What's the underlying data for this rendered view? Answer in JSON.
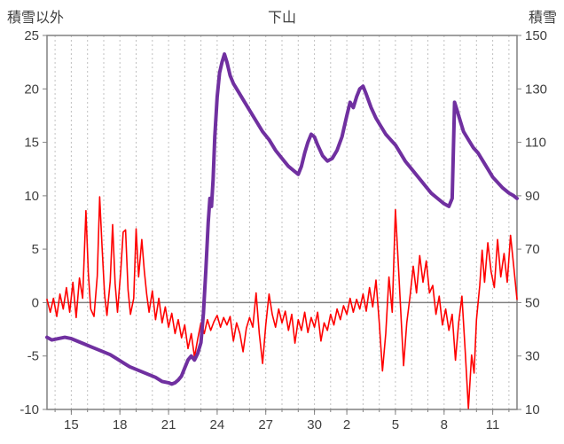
{
  "header": {
    "left_axis_title": "積雪以外",
    "chart_title": "下山",
    "right_axis_title": "積雪"
  },
  "colors": {
    "temperature_series": "#ff0000",
    "snow_series": "#7030a0",
    "axis_frame": "#808080",
    "gridline": "#c0c0c0",
    "tick_text": "#3f3f3f"
  },
  "chart_data": {
    "type": "line",
    "title": "下山",
    "legend": "none",
    "grid": "vertical-dashed-daily",
    "x_axis": {
      "min": 13.5,
      "max": 42.5,
      "tick_labels": [
        "15",
        "18",
        "21",
        "24",
        "27",
        "30",
        "2",
        "5",
        "8",
        "11"
      ],
      "tick_positions": [
        15,
        18,
        21,
        24,
        27,
        30,
        32,
        35,
        38,
        41
      ],
      "minor_step": 1
    },
    "y_left": {
      "title": "積雪以外",
      "min": -10,
      "max": 25,
      "ticks": [
        -10,
        -5,
        0,
        5,
        10,
        15,
        20,
        25
      ]
    },
    "y_right": {
      "title": "積雪",
      "min": 10,
      "max": 150,
      "ticks": [
        10,
        30,
        50,
        70,
        90,
        110,
        130,
        150
      ]
    },
    "zero_line": {
      "axis": "left",
      "value": 0
    },
    "series": [
      {
        "name": "積雪以外",
        "axis": "left",
        "color": "#ff0000",
        "width": 1.6,
        "points": [
          [
            13.5,
            0.3
          ],
          [
            13.7,
            -0.9
          ],
          [
            13.9,
            0.4
          ],
          [
            14.1,
            -1.3
          ],
          [
            14.3,
            0.8
          ],
          [
            14.5,
            -0.6
          ],
          [
            14.7,
            1.4
          ],
          [
            14.9,
            -0.9
          ],
          [
            15.1,
            1.9
          ],
          [
            15.3,
            -1.4
          ],
          [
            15.5,
            2.3
          ],
          [
            15.7,
            0.4
          ],
          [
            15.9,
            8.6
          ],
          [
            16.05,
            2.8
          ],
          [
            16.2,
            -0.6
          ],
          [
            16.4,
            -1.3
          ],
          [
            16.6,
            2.5
          ],
          [
            16.75,
            9.9
          ],
          [
            16.9,
            5.2
          ],
          [
            17.05,
            0.8
          ],
          [
            17.2,
            -1.2
          ],
          [
            17.4,
            2.0
          ],
          [
            17.55,
            7.3
          ],
          [
            17.7,
            1.8
          ],
          [
            17.85,
            -0.9
          ],
          [
            18.05,
            3.0
          ],
          [
            18.2,
            6.6
          ],
          [
            18.35,
            6.8
          ],
          [
            18.5,
            1.2
          ],
          [
            18.65,
            -1.1
          ],
          [
            18.85,
            0.4
          ],
          [
            19.0,
            6.9
          ],
          [
            19.15,
            2.4
          ],
          [
            19.35,
            5.9
          ],
          [
            19.5,
            3.0
          ],
          [
            19.65,
            0.8
          ],
          [
            19.8,
            -0.9
          ],
          [
            20.0,
            1.1
          ],
          [
            20.2,
            -1.6
          ],
          [
            20.4,
            0.4
          ],
          [
            20.6,
            -1.9
          ],
          [
            20.8,
            -0.4
          ],
          [
            21.0,
            -2.3
          ],
          [
            21.2,
            -1.0
          ],
          [
            21.4,
            -2.9
          ],
          [
            21.6,
            -1.6
          ],
          [
            21.8,
            -3.3
          ],
          [
            22.0,
            -2.1
          ],
          [
            22.2,
            -4.3
          ],
          [
            22.4,
            -2.9
          ],
          [
            22.6,
            -5.1
          ],
          [
            22.8,
            -3.4
          ],
          [
            23.0,
            -1.9
          ],
          [
            23.2,
            -2.9
          ],
          [
            23.4,
            -1.6
          ],
          [
            23.6,
            -2.6
          ],
          [
            23.8,
            -1.8
          ],
          [
            24.0,
            -1.2
          ],
          [
            24.2,
            -2.3
          ],
          [
            24.4,
            -1.4
          ],
          [
            24.6,
            -2.1
          ],
          [
            24.8,
            -1.3
          ],
          [
            25.0,
            -3.6
          ],
          [
            25.2,
            -1.9
          ],
          [
            25.4,
            -2.9
          ],
          [
            25.6,
            -4.6
          ],
          [
            25.8,
            -2.4
          ],
          [
            26.0,
            -1.4
          ],
          [
            26.2,
            -2.3
          ],
          [
            26.4,
            0.9
          ],
          [
            26.6,
            -2.9
          ],
          [
            26.8,
            -5.7
          ],
          [
            27.0,
            -2.1
          ],
          [
            27.2,
            0.8
          ],
          [
            27.4,
            -1.1
          ],
          [
            27.6,
            -2.3
          ],
          [
            27.8,
            -0.6
          ],
          [
            28.0,
            -1.9
          ],
          [
            28.2,
            -0.8
          ],
          [
            28.4,
            -2.6
          ],
          [
            28.6,
            -1.1
          ],
          [
            28.8,
            -3.8
          ],
          [
            29.0,
            -1.6
          ],
          [
            29.2,
            -2.6
          ],
          [
            29.4,
            -0.9
          ],
          [
            29.6,
            -2.8
          ],
          [
            29.8,
            -1.4
          ],
          [
            30.0,
            -2.3
          ],
          [
            30.2,
            -0.9
          ],
          [
            30.4,
            -3.6
          ],
          [
            30.6,
            -1.9
          ],
          [
            30.8,
            -2.6
          ],
          [
            31.0,
            -1.1
          ],
          [
            31.2,
            -2.1
          ],
          [
            31.4,
            -0.6
          ],
          [
            31.6,
            -1.6
          ],
          [
            31.8,
            -0.3
          ],
          [
            32.0,
            -1.1
          ],
          [
            32.2,
            0.4
          ],
          [
            32.4,
            -0.9
          ],
          [
            32.6,
            0.3
          ],
          [
            32.8,
            -0.6
          ],
          [
            33.0,
            0.8
          ],
          [
            33.2,
            -0.8
          ],
          [
            33.4,
            1.4
          ],
          [
            33.6,
            -0.4
          ],
          [
            33.8,
            2.1
          ],
          [
            34.0,
            -1.9
          ],
          [
            34.2,
            -6.4
          ],
          [
            34.4,
            -2.9
          ],
          [
            34.6,
            2.4
          ],
          [
            34.8,
            -0.9
          ],
          [
            35.0,
            8.7
          ],
          [
            35.2,
            2.9
          ],
          [
            35.5,
            -5.9
          ],
          [
            35.7,
            -1.9
          ],
          [
            35.9,
            0.6
          ],
          [
            36.1,
            3.4
          ],
          [
            36.3,
            0.9
          ],
          [
            36.5,
            4.4
          ],
          [
            36.7,
            1.9
          ],
          [
            36.9,
            3.9
          ],
          [
            37.1,
            0.9
          ],
          [
            37.3,
            1.6
          ],
          [
            37.5,
            -1.1
          ],
          [
            37.7,
            0.6
          ],
          [
            37.9,
            -2.1
          ],
          [
            38.1,
            -0.6
          ],
          [
            38.3,
            -2.6
          ],
          [
            38.5,
            -1.1
          ],
          [
            38.7,
            -5.4
          ],
          [
            38.9,
            -1.9
          ],
          [
            39.1,
            0.6
          ],
          [
            39.3,
            -4.4
          ],
          [
            39.5,
            -9.9
          ],
          [
            39.7,
            -4.9
          ],
          [
            39.85,
            -6.6
          ],
          [
            40.0,
            -1.6
          ],
          [
            40.2,
            1.6
          ],
          [
            40.35,
            4.9
          ],
          [
            40.5,
            1.9
          ],
          [
            40.7,
            5.6
          ],
          [
            40.9,
            2.9
          ],
          [
            41.1,
            1.4
          ],
          [
            41.3,
            5.9
          ],
          [
            41.5,
            2.4
          ],
          [
            41.7,
            4.6
          ],
          [
            41.9,
            1.9
          ],
          [
            42.1,
            6.3
          ],
          [
            42.3,
            3.4
          ],
          [
            42.5,
            0.3
          ]
        ]
      },
      {
        "name": "積雪",
        "axis": "right",
        "color": "#7030a0",
        "width": 4,
        "points": [
          [
            13.5,
            37
          ],
          [
            13.8,
            36
          ],
          [
            14.2,
            36.5
          ],
          [
            14.6,
            37
          ],
          [
            15.0,
            36.5
          ],
          [
            15.4,
            35.5
          ],
          [
            15.8,
            34.5
          ],
          [
            16.2,
            33.5
          ],
          [
            16.6,
            32.5
          ],
          [
            17.0,
            31.5
          ],
          [
            17.4,
            30.5
          ],
          [
            17.8,
            29
          ],
          [
            18.2,
            27.5
          ],
          [
            18.6,
            26
          ],
          [
            19.0,
            25
          ],
          [
            19.4,
            24
          ],
          [
            19.8,
            23
          ],
          [
            20.2,
            22
          ],
          [
            20.6,
            20.5
          ],
          [
            21.0,
            20
          ],
          [
            21.2,
            19.5
          ],
          [
            21.4,
            20
          ],
          [
            21.6,
            21
          ],
          [
            21.8,
            22.5
          ],
          [
            22.0,
            25.5
          ],
          [
            22.2,
            28.5
          ],
          [
            22.4,
            30
          ],
          [
            22.6,
            28.5
          ],
          [
            22.8,
            31
          ],
          [
            23.0,
            35
          ],
          [
            23.15,
            46
          ],
          [
            23.3,
            62
          ],
          [
            23.45,
            80
          ],
          [
            23.55,
            89
          ],
          [
            23.65,
            86
          ],
          [
            23.75,
            96
          ],
          [
            23.85,
            112
          ],
          [
            24.0,
            127
          ],
          [
            24.15,
            136
          ],
          [
            24.3,
            140
          ],
          [
            24.45,
            143
          ],
          [
            24.6,
            140
          ],
          [
            24.8,
            135
          ],
          [
            25.0,
            132
          ],
          [
            25.3,
            129
          ],
          [
            25.6,
            126
          ],
          [
            26.0,
            122
          ],
          [
            26.4,
            118
          ],
          [
            26.8,
            114
          ],
          [
            27.2,
            111
          ],
          [
            27.6,
            107
          ],
          [
            28.0,
            104
          ],
          [
            28.4,
            101
          ],
          [
            28.8,
            99
          ],
          [
            29.0,
            98
          ],
          [
            29.2,
            101
          ],
          [
            29.4,
            106
          ],
          [
            29.6,
            110
          ],
          [
            29.8,
            113
          ],
          [
            30.0,
            112
          ],
          [
            30.2,
            109
          ],
          [
            30.5,
            105
          ],
          [
            30.8,
            103
          ],
          [
            31.1,
            104
          ],
          [
            31.4,
            107
          ],
          [
            31.7,
            112
          ],
          [
            32.0,
            120
          ],
          [
            32.2,
            125
          ],
          [
            32.4,
            123
          ],
          [
            32.6,
            127
          ],
          [
            32.8,
            130
          ],
          [
            33.0,
            131
          ],
          [
            33.2,
            128
          ],
          [
            33.5,
            123
          ],
          [
            33.8,
            119
          ],
          [
            34.1,
            116
          ],
          [
            34.4,
            113
          ],
          [
            34.7,
            111
          ],
          [
            35.0,
            109
          ],
          [
            35.3,
            106
          ],
          [
            35.6,
            103
          ],
          [
            36.0,
            100
          ],
          [
            36.4,
            97
          ],
          [
            36.8,
            94
          ],
          [
            37.2,
            91
          ],
          [
            37.6,
            89
          ],
          [
            38.0,
            87
          ],
          [
            38.3,
            86
          ],
          [
            38.5,
            89
          ],
          [
            38.65,
            125
          ],
          [
            38.8,
            122
          ],
          [
            39.0,
            118
          ],
          [
            39.2,
            114
          ],
          [
            39.5,
            111
          ],
          [
            39.8,
            108
          ],
          [
            40.1,
            106
          ],
          [
            40.4,
            103
          ],
          [
            40.7,
            100
          ],
          [
            41.0,
            97
          ],
          [
            41.3,
            95
          ],
          [
            41.6,
            93
          ],
          [
            42.0,
            91
          ],
          [
            42.3,
            90
          ],
          [
            42.5,
            89
          ]
        ]
      }
    ]
  }
}
